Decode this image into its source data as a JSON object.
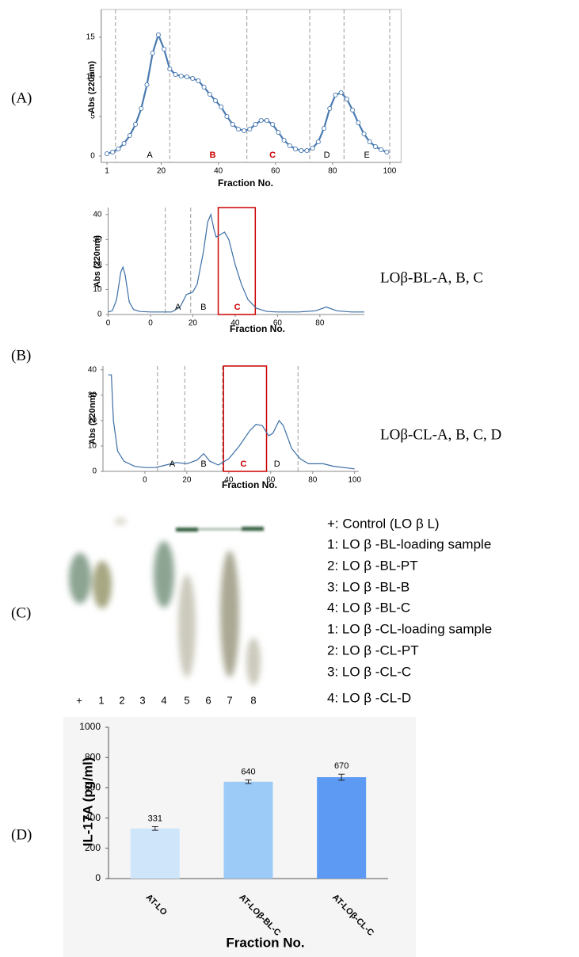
{
  "panel_labels": [
    "(A)",
    "(B)",
    "(C)",
    "(D)"
  ],
  "side_labels": [
    "LOβ-BL-A, B, C",
    "LOβ-CL-A, B, C, D"
  ],
  "gel": {
    "lane_labels": [
      "+",
      "1",
      "2",
      "3",
      "4",
      "5",
      "6",
      "7",
      "8"
    ],
    "legend": [
      "+: Control (LO β L)",
      "1: LO β -BL-loading sample",
      "2: LO β -BL-PT",
      "3: LO β -BL-B",
      "4: LO β -BL-C",
      "1: LO β -CL-loading sample",
      "2: LO β -CL-PT",
      "3: LO β -CL-C",
      "4: LO β -CL-D"
    ]
  },
  "chart_data": [
    {
      "type": "line",
      "marker": "circle",
      "color": "#4a7ab0",
      "y_label": "Abs (220nm)",
      "x_label": "Fraction No.",
      "x": [
        1,
        3,
        5,
        7,
        9,
        11,
        13,
        15,
        17,
        19,
        21,
        23,
        25,
        27,
        29,
        31,
        33,
        35,
        37,
        39,
        41,
        43,
        45,
        47,
        49,
        51,
        53,
        55,
        57,
        59,
        61,
        63,
        65,
        67,
        69,
        71,
        73,
        75,
        77,
        79,
        81,
        83,
        85,
        87,
        89,
        91,
        93,
        95,
        97,
        99
      ],
      "series": [
        {
          "color": "#4a7ab0",
          "values": [
            0.3,
            0.5,
            0.9,
            1.6,
            2.6,
            4.0,
            6.0,
            9.0,
            13.0,
            15.3,
            13.5,
            11.0,
            10.3,
            10.1,
            10.0,
            9.8,
            9.5,
            8.7,
            7.8,
            7.0,
            6.2,
            5.0,
            4.0,
            3.4,
            3.2,
            3.4,
            4.0,
            4.5,
            4.5,
            4.0,
            3.0,
            2.0,
            1.3,
            0.9,
            0.7,
            0.7,
            1.0,
            1.8,
            3.5,
            6.0,
            7.7,
            8.0,
            7.2,
            5.8,
            4.2,
            2.8,
            1.8,
            1.2,
            0.8,
            0.5
          ]
        }
      ],
      "xlim": [
        -1,
        104
      ],
      "ylim": [
        -0.8,
        18.5
      ],
      "xticks": [
        1,
        20,
        40,
        60,
        80,
        100
      ],
      "yticks": [
        0,
        5,
        10,
        15
      ],
      "dividers": [
        4,
        23,
        50,
        72,
        84,
        100
      ],
      "region_labels": [
        {
          "text": "A",
          "x": 16,
          "color": "#000000"
        },
        {
          "text": "B",
          "x": 38,
          "color": "#cc0000"
        },
        {
          "text": "C",
          "x": 59,
          "color": "#cc0000"
        },
        {
          "text": "D",
          "x": 78,
          "color": "#000000"
        },
        {
          "text": "E",
          "x": 92,
          "color": "#000000"
        }
      ]
    },
    {
      "type": "line",
      "color": "#3b6ea5",
      "y_label": "Abs (220nm)",
      "x_label": "Fraction No.",
      "x": [
        -20,
        -18,
        -16,
        -14,
        -13,
        -12,
        -10,
        -8,
        -5,
        0,
        10,
        14,
        17,
        20,
        22,
        25,
        27,
        28.5,
        30,
        31,
        33,
        35,
        37,
        40,
        43,
        46,
        50,
        55,
        60,
        70,
        78,
        83,
        88,
        95,
        101
      ],
      "series": [
        {
          "color": "#3b6ea5",
          "values": [
            1,
            1.5,
            6,
            17,
            19,
            16,
            5,
            2,
            1.2,
            1,
            1,
            3,
            8,
            9,
            12,
            25,
            37,
            40,
            34,
            31,
            32,
            33,
            30,
            20,
            12,
            6,
            2.5,
            1.2,
            1,
            1,
            1.5,
            3,
            1.5,
            1,
            1
          ]
        }
      ],
      "xlim": [
        -20,
        101
      ],
      "ylim": [
        0,
        42.8
      ],
      "xticks": [
        {
          "value": -20,
          "label": "0"
        },
        0,
        20,
        40,
        60,
        80
      ],
      "yticks": [
        0,
        10,
        20,
        30,
        40
      ],
      "dividers": [
        7,
        19
      ],
      "highlight": [
        32,
        49.5
      ],
      "highlight_color": "#cc0000",
      "region_labels": [
        {
          "text": "A",
          "x": 13,
          "color": "#000000"
        },
        {
          "text": "B",
          "x": 25,
          "color": "#000000"
        },
        {
          "text": "C",
          "x": 41,
          "color": "#cc0000"
        }
      ]
    },
    {
      "type": "line",
      "color": "#3b6ea5",
      "y_label": "Abs (220nm)",
      "x_label": "Fraction No.",
      "x": [
        -17.5,
        -16,
        -15,
        -13,
        -10,
        -5,
        0,
        5,
        10,
        15,
        20,
        25,
        28,
        31,
        35,
        40,
        45,
        50,
        53,
        56,
        59,
        61,
        64,
        66,
        70,
        74,
        78,
        85,
        90,
        100
      ],
      "series": [
        {
          "color": "#3b6ea5",
          "values": [
            38,
            38,
            20,
            8,
            4,
            2,
            1.5,
            1.5,
            2.5,
            3.5,
            3,
            4.5,
            7,
            4,
            2.5,
            5,
            10,
            16,
            18.5,
            18,
            14,
            15,
            20,
            18,
            9,
            5,
            3,
            3,
            2,
            1
          ]
        }
      ],
      "xlim": [
        -20,
        102
      ],
      "ylim": [
        0,
        41.5
      ],
      "xticks": [
        0,
        20,
        40,
        60,
        80,
        100
      ],
      "yticks": [
        0,
        10,
        20,
        30,
        40
      ],
      "dividers": [
        6,
        19,
        37,
        73
      ],
      "highlight": [
        37.5,
        58
      ],
      "highlight_color": "#cc0000",
      "region_labels": [
        {
          "text": "A",
          "x": 13,
          "color": "#000000"
        },
        {
          "text": "B",
          "x": 28,
          "color": "#000000"
        },
        {
          "text": "C",
          "x": 47,
          "color": "#cc0000"
        },
        {
          "text": "D",
          "x": 63,
          "color": "#000000"
        }
      ]
    },
    {
      "type": "bar",
      "y_label": "IL-17A (pg/ml)",
      "x_label": "Fraction No.",
      "categories": [
        "AT-LO",
        "AT-LOβ-BL-C",
        "AT-LOβ-CL-C"
      ],
      "values": [
        331,
        640,
        670
      ],
      "errors": [
        12,
        12,
        20
      ],
      "colors": [
        "#cfe6fa",
        "#9ccbf8",
        "#5c9af3"
      ],
      "ylim": [
        0,
        1000
      ],
      "yticks": [
        0,
        200,
        400,
        600,
        800,
        1000
      ]
    }
  ]
}
